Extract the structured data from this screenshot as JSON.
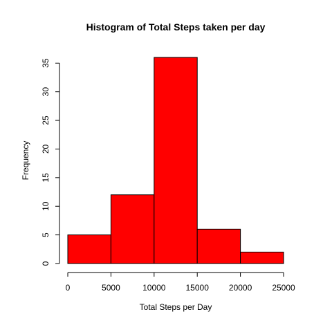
{
  "chart_data": {
    "type": "bar",
    "title": "Histogram of Total Steps taken per day",
    "xlabel": "Total Steps per Day",
    "ylabel": "Frequency",
    "bins": [
      {
        "from": 0,
        "to": 5000,
        "count": 5
      },
      {
        "from": 5000,
        "to": 10000,
        "count": 12
      },
      {
        "from": 10000,
        "to": 15000,
        "count": 36
      },
      {
        "from": 15000,
        "to": 20000,
        "count": 6
      },
      {
        "from": 20000,
        "to": 25000,
        "count": 2
      }
    ],
    "xlim": [
      0,
      25000
    ],
    "ylim": [
      0,
      36
    ],
    "x_ticks": [
      0,
      5000,
      10000,
      15000,
      20000,
      25000
    ],
    "y_ticks": [
      0,
      5,
      10,
      15,
      20,
      25,
      30,
      35
    ],
    "bar_color": "#ff0000",
    "grid": false,
    "legend": "none"
  }
}
